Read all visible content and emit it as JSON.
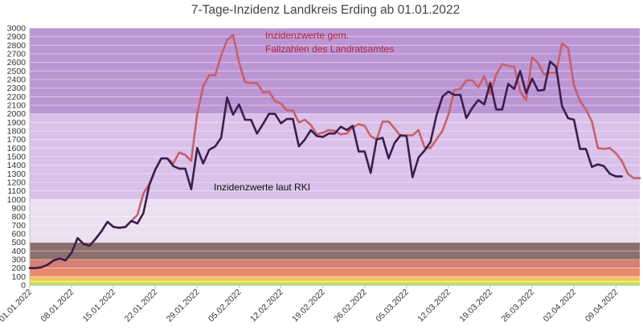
{
  "chart_data": {
    "type": "line",
    "title": "7-Tage-Inzidenz Landkreis Erding ab 01.01.2022",
    "xlabel": "",
    "ylabel": "",
    "ylim": [
      0,
      3000
    ],
    "y_ticks": [
      0,
      100,
      200,
      300,
      400,
      500,
      600,
      700,
      800,
      900,
      1000,
      1100,
      1200,
      1300,
      1400,
      1500,
      1600,
      1700,
      1800,
      1900,
      2000,
      2100,
      2200,
      2300,
      2400,
      2500,
      2600,
      2700,
      2800,
      2900,
      3000
    ],
    "x_tick_labels": [
      "01.01.2022",
      "08.01.2022",
      "15.01.2022",
      "22.01.2022",
      "29.01.2022",
      "05.02.2022",
      "12.02.2022",
      "19.02.2022",
      "26.02.2022",
      "05.03.2022",
      "12.03.2022",
      "19.03.2022",
      "26.03.2022",
      "02.04.2022",
      "09.04.2022"
    ],
    "grid": true,
    "legend": "none",
    "annotations": [
      {
        "text": "Inzidenzwerte gem.",
        "color": "#b5253a"
      },
      {
        "text": "Fallzahlen des Landratsamtes",
        "color": "#b5253a"
      },
      {
        "text": "Inzidenzwerte laut RKI",
        "color": "#111111"
      }
    ],
    "background_bands": [
      {
        "from": 0,
        "to": 35,
        "color": "#b4e857"
      },
      {
        "from": 35,
        "to": 50,
        "color": "#f7f15c"
      },
      {
        "from": 50,
        "to": 100,
        "color": "#f5c267"
      },
      {
        "from": 100,
        "to": 200,
        "color": "#e98a6c"
      },
      {
        "from": 200,
        "to": 300,
        "color": "#d67f74"
      },
      {
        "from": 300,
        "to": 500,
        "color": "#8c6f6a"
      },
      {
        "from": 500,
        "to": 1000,
        "color": "#ebe0f2"
      },
      {
        "from": 1000,
        "to": 2000,
        "color": "#d9c1ea"
      },
      {
        "from": 2000,
        "to": 3000,
        "color": "#bb95d4"
      }
    ],
    "series": [
      {
        "line_color": "#c7606a",
        "values": [
          200,
          200,
          210,
          240,
          290,
          310,
          290,
          380,
          550,
          480,
          460,
          540,
          630,
          740,
          680,
          670,
          680,
          750,
          820,
          1070,
          1180,
          1350,
          1480,
          1480,
          1420,
          1550,
          1520,
          1450,
          2000,
          2320,
          2450,
          2450,
          2680,
          2860,
          2920,
          2600,
          2370,
          2360,
          2360,
          2250,
          2260,
          2150,
          2120,
          2040,
          2040,
          1900,
          1930,
          1870,
          1760,
          1780,
          1810,
          1800,
          1760,
          1770,
          1840,
          1880,
          1860,
          1740,
          1700,
          1910,
          1910,
          1830,
          1740,
          1750,
          1750,
          1810,
          1610,
          1600,
          1700,
          1800,
          1990,
          2280,
          2290,
          2390,
          2390,
          2310,
          2440,
          2230,
          2460,
          2580,
          2560,
          2550,
          2260,
          2160,
          2660,
          2590,
          2460,
          2480,
          2480,
          2820,
          2770,
          2330,
          2150,
          2050,
          1910,
          1600,
          1590,
          1600,
          1540,
          1450,
          1300,
          1250,
          1250
        ]
      },
      {
        "line_color": "#3b1e4c",
        "values": [
          200,
          200,
          210,
          240,
          290,
          310,
          290,
          380,
          550,
          480,
          460,
          540,
          630,
          740,
          680,
          670,
          680,
          750,
          720,
          840,
          1170,
          1350,
          1480,
          1480,
          1390,
          1360,
          1360,
          1120,
          1600,
          1420,
          1580,
          1620,
          1720,
          2190,
          1990,
          2110,
          1930,
          1930,
          1770,
          1880,
          2000,
          2000,
          1890,
          1940,
          1940,
          1620,
          1700,
          1810,
          1740,
          1730,
          1770,
          1770,
          1850,
          1810,
          1860,
          1560,
          1560,
          1310,
          1700,
          1720,
          1480,
          1660,
          1750,
          1740,
          1260,
          1490,
          1570,
          1670,
          1980,
          2200,
          2260,
          2220,
          2220,
          1950,
          2070,
          2160,
          2110,
          2360,
          2050,
          2050,
          2350,
          2290,
          2500,
          2240,
          2410,
          2270,
          2280,
          2610,
          2550,
          2090,
          1950,
          1930,
          1590,
          1590,
          1380,
          1410,
          1390,
          1300,
          1270,
          1270
        ]
      }
    ]
  }
}
